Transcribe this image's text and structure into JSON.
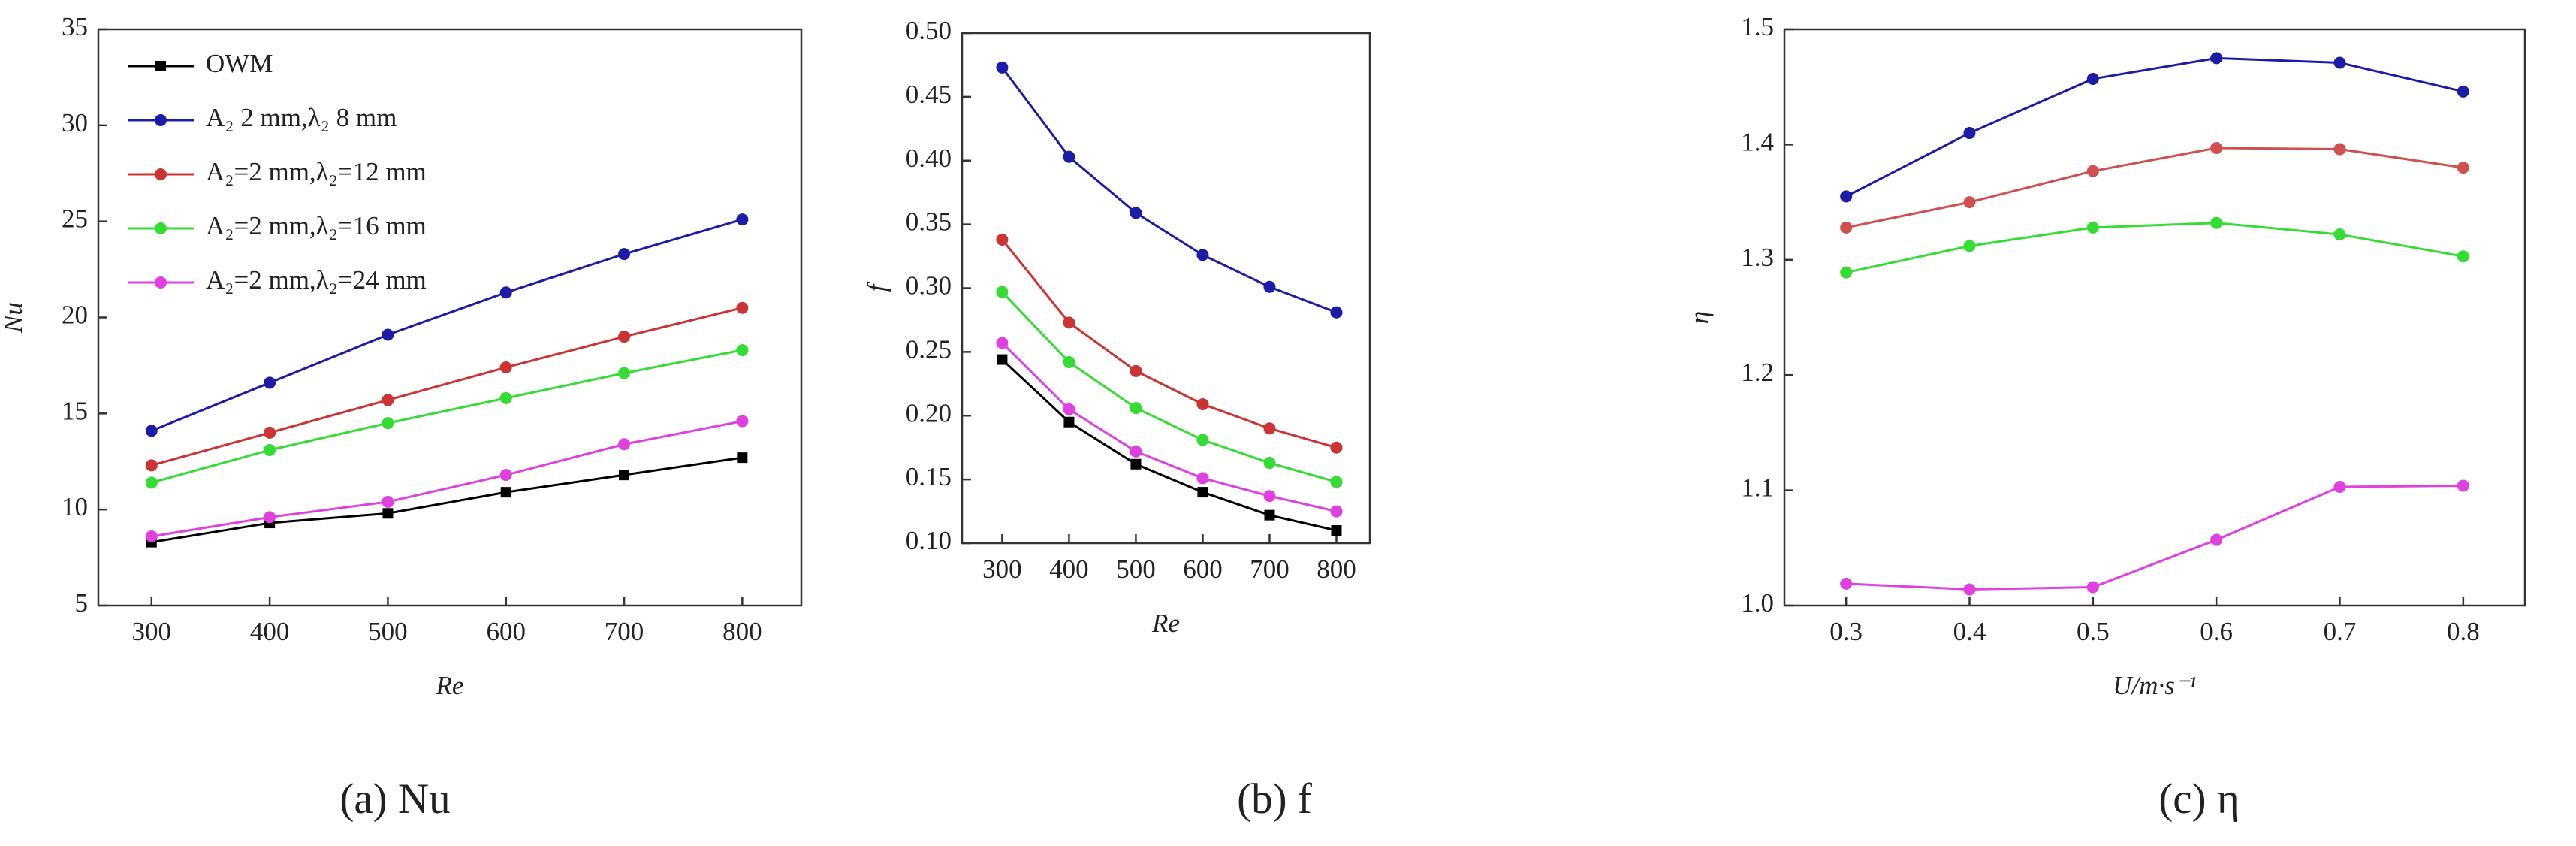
{
  "chart_data": [
    {
      "type": "line",
      "caption": "(a) Nu",
      "xlabel": "Re",
      "ylabel": "Nu",
      "x": [
        300,
        400,
        500,
        600,
        700,
        800
      ],
      "xlim": [
        255,
        850
      ],
      "xticks": [
        300,
        400,
        500,
        600,
        700,
        800
      ],
      "ylim": [
        5,
        35
      ],
      "yticks": [
        5,
        10,
        15,
        20,
        25,
        30,
        35
      ],
      "legend": "upper left",
      "series": [
        {
          "name": "OWM",
          "color": "#000000",
          "marker": "square",
          "values": [
            8.3,
            9.3,
            9.8,
            10.9,
            11.8,
            12.7
          ]
        },
        {
          "name": "A₂ 2 mm,λ₂ 8 mm",
          "color": "#1c1ca8",
          "marker": "circle",
          "values": [
            14.1,
            16.6,
            19.1,
            21.3,
            23.3,
            25.1
          ]
        },
        {
          "name": "A₂=2 mm,λ₂=12 mm",
          "color": "#cc3333",
          "marker": "circle",
          "values": [
            12.3,
            14.0,
            15.7,
            17.4,
            19.0,
            20.5
          ]
        },
        {
          "name": "A₂=2 mm,λ₂=16 mm",
          "color": "#33dd33",
          "marker": "circle",
          "values": [
            11.4,
            13.1,
            14.5,
            15.8,
            17.1,
            18.3
          ]
        },
        {
          "name": "A₂=2 mm,λ₂=24 mm",
          "color": "#e040e0",
          "marker": "circle",
          "values": [
            8.6,
            9.6,
            10.4,
            11.8,
            13.4,
            14.6
          ]
        }
      ]
    },
    {
      "type": "line",
      "caption": "(b) f",
      "xlabel": "Re",
      "ylabel": "f",
      "x": [
        300,
        400,
        500,
        600,
        700,
        800
      ],
      "xlim": [
        240,
        850
      ],
      "xticks": [
        300,
        400,
        500,
        600,
        700,
        800
      ],
      "ylim": [
        0.1,
        0.5
      ],
      "yticks": [
        {
          "value": 0.1,
          "label": "0.10"
        },
        0.15,
        {
          "value": 0.2,
          "label": "0.20"
        },
        0.25,
        {
          "value": 0.3,
          "label": "0.30"
        },
        0.35,
        {
          "value": 0.4,
          "label": "0.40"
        },
        0.45,
        {
          "value": 0.5,
          "label": "0.50"
        }
      ],
      "series": [
        {
          "color": "#000000",
          "marker": "square",
          "values": [
            0.244,
            0.195,
            0.162,
            0.14,
            0.122,
            0.11
          ]
        },
        {
          "color": "#1c1ca8",
          "marker": "circle",
          "values": [
            0.473,
            0.403,
            0.359,
            0.326,
            0.301,
            0.281
          ]
        },
        {
          "color": "#cc3333",
          "marker": "circle",
          "values": [
            0.338,
            0.273,
            0.235,
            0.209,
            0.19,
            0.175
          ]
        },
        {
          "color": "#33dd33",
          "marker": "circle",
          "values": [
            0.297,
            0.242,
            0.206,
            0.181,
            0.163,
            0.148
          ]
        },
        {
          "color": "#e040e0",
          "marker": "circle",
          "values": [
            0.257,
            0.205,
            0.172,
            0.151,
            0.137,
            0.125
          ]
        }
      ]
    },
    {
      "type": "line",
      "caption": "(c) η",
      "xlabel": "U/m·s⁻¹",
      "ylabel": "η",
      "x": [
        0.3,
        0.4,
        0.5,
        0.6,
        0.7,
        0.8
      ],
      "xlim": [
        0.25,
        0.85
      ],
      "xticks": [
        0.3,
        0.4,
        0.5,
        0.6,
        0.7,
        0.8
      ],
      "ylim": [
        1.0,
        1.5
      ],
      "yticks": [
        {
          "value": 1.0,
          "label": "1.0"
        },
        1.1,
        1.2,
        1.3,
        1.4,
        1.5
      ],
      "series": [
        {
          "color": "#1c1ca8",
          "marker": "circle",
          "values": [
            1.355,
            1.41,
            1.457,
            1.475,
            1.471,
            1.446
          ]
        },
        {
          "color": "#d05050",
          "marker": "circle",
          "values": [
            1.328,
            1.35,
            1.377,
            1.397,
            1.396,
            1.38
          ]
        },
        {
          "color": "#33dd33",
          "marker": "circle",
          "values": [
            1.289,
            1.312,
            1.328,
            1.332,
            1.322,
            1.303
          ]
        },
        {
          "color": "#e040e0",
          "marker": "circle",
          "values": [
            1.019,
            1.014,
            1.016,
            1.057,
            1.103,
            1.104
          ]
        }
      ]
    }
  ]
}
